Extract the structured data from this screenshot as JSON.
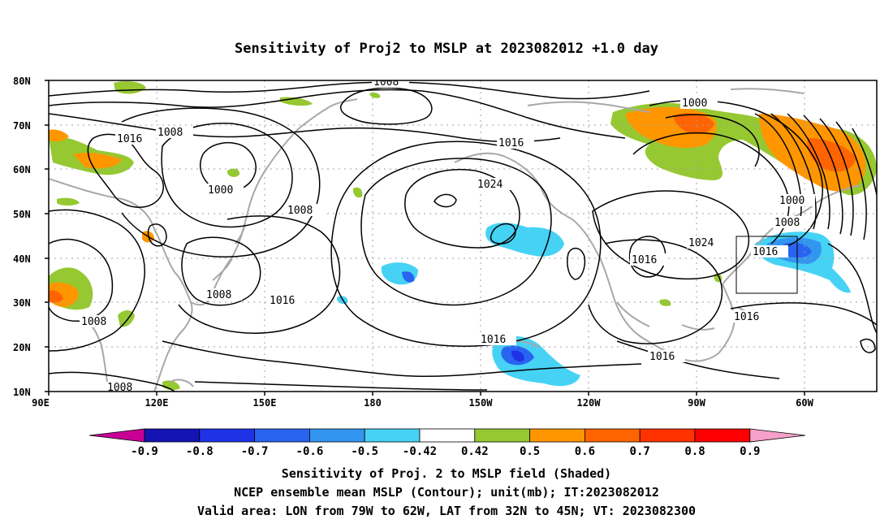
{
  "title": "Sensitivity of Proj2 to MSLP at 2023082012 +1.0 day",
  "map": {
    "lat_labels": [
      "80N",
      "70N",
      "60N",
      "50N",
      "40N",
      "30N",
      "20N",
      "10N"
    ],
    "lon_labels": [
      "90E",
      "120E",
      "150E",
      "180",
      "150W",
      "120W",
      "90W",
      "60W"
    ],
    "contour_labels": [
      "1008",
      "1016",
      "1008",
      "1000",
      "1008",
      "1016",
      "1024",
      "1008",
      "1016",
      "1000",
      "1000",
      "1008",
      "1024",
      "1016",
      "1016",
      "1008",
      "1016",
      "1016",
      "1016",
      "1008"
    ],
    "colors": {
      "land_outline": "#a8a8a8",
      "contour": "#000000",
      "grid": "#a0a0a0"
    }
  },
  "colorbar": {
    "labels": [
      "-0.9",
      "-0.8",
      "-0.7",
      "-0.6",
      "-0.5",
      "-0.42",
      "0.42",
      "0.5",
      "0.6",
      "0.7",
      "0.8",
      "0.9"
    ],
    "colors": [
      "#c80096",
      "#1414b4",
      "#1e32e6",
      "#2864f0",
      "#3296f0",
      "#46d2f5",
      "#ffffff",
      "#96c832",
      "#ff9600",
      "#ff6400",
      "#ff3200",
      "#ff0000",
      "#f5a0c8"
    ]
  },
  "captions": [
    "Sensitivity of Proj. 2 to MSLP field (Shaded)",
    "NCEP ensemble mean MSLP (Contour); unit(mb); IT:2023082012",
    "Valid area: LON from 79W to 62W, LAT from 32N to 45N; VT: 2023082300"
  ]
}
